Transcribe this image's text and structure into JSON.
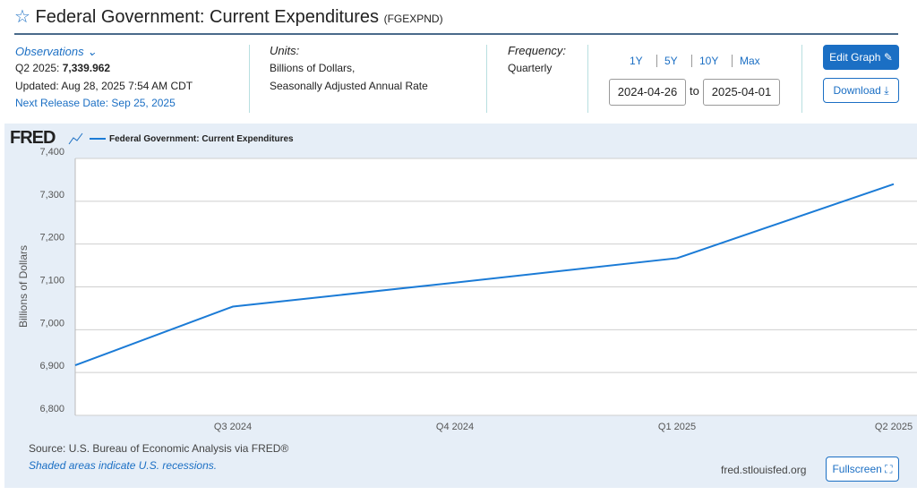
{
  "header": {
    "title": "Federal Government: Current Expenditures",
    "series_id": "(FGEXPND)"
  },
  "observations": {
    "label": "Observations",
    "latest_period": "Q2 2025:",
    "latest_value": "7,339.962",
    "updated": "Updated: Aug 28, 2025 7:54 AM CDT",
    "next_release": "Next Release Date: Sep 25, 2025"
  },
  "units": {
    "label": "Units:",
    "lines": [
      "Billions of Dollars,",
      "Seasonally Adjusted Annual Rate"
    ]
  },
  "frequency": {
    "label": "Frequency:",
    "value": "Quarterly"
  },
  "ranges": [
    "1Y",
    "5Y",
    "10Y",
    "Max"
  ],
  "dates": {
    "start": "2024-04-26",
    "separator": "to",
    "end": "2025-04-01"
  },
  "buttons": {
    "edit": "Edit Graph",
    "download": "Download",
    "fullscreen": "Fullscreen"
  },
  "logo": "FRED",
  "chart_data": {
    "type": "line",
    "y_label": "Billions of Dollars",
    "categories": [
      null,
      "Q3 2024",
      "Q4 2024",
      "Q1 2025",
      "Q2 2025"
    ],
    "series": [
      {
        "name": "Federal Government: Current Expenditures",
        "color": "#1b7bd6",
        "values": [
          6917,
          7054,
          7110,
          7167,
          7339.962
        ]
      }
    ],
    "ylim": [
      6800,
      7400
    ],
    "yticks": [
      {
        "value": 6800,
        "label": "6,800"
      },
      {
        "value": 6900,
        "label": "6,900"
      },
      {
        "value": 7000,
        "label": "7,000"
      },
      {
        "value": 7100,
        "label": "7,100"
      },
      {
        "value": 7200,
        "label": "7,200"
      },
      {
        "value": 7300,
        "label": "7,300"
      },
      {
        "value": 7400,
        "label": "7,400"
      }
    ],
    "grid": true
  },
  "footer": {
    "source": "Source: U.S. Bureau of Economic Analysis via FRED®",
    "recessions": "Shaded areas indicate U.S. recessions.",
    "site": "fred.stlouisfed.org"
  }
}
